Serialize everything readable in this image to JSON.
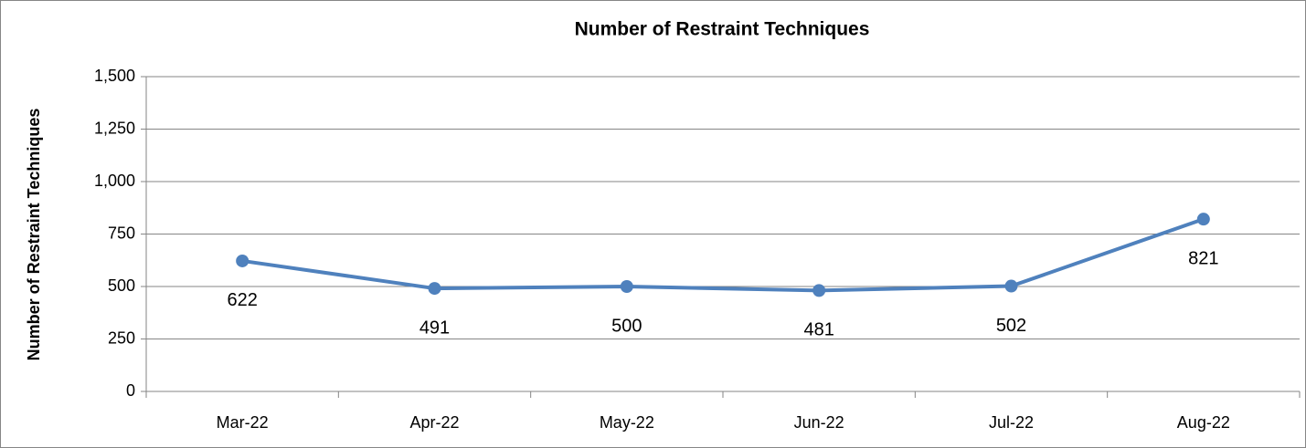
{
  "chart_data": {
    "type": "line",
    "title": "Number of Restraint Techniques",
    "y_label": "Number of Restraint Techniques",
    "categories": [
      "Mar-22",
      "Apr-22",
      "May-22",
      "Jun-22",
      "Jul-22",
      "Aug-22"
    ],
    "series": [
      {
        "name": "Number of Restraint Techniques",
        "color": "#4f81bd",
        "values": [
          622,
          491,
          500,
          481,
          502,
          821
        ]
      }
    ],
    "ylim": [
      0,
      1500
    ],
    "yticks": [
      0,
      250,
      500,
      750,
      {
        "value": 1000,
        "label": "1,000"
      },
      {
        "value": 1250,
        "label": "1,250"
      },
      {
        "value": 1500,
        "label": "1,500"
      }
    ],
    "grid": true
  }
}
